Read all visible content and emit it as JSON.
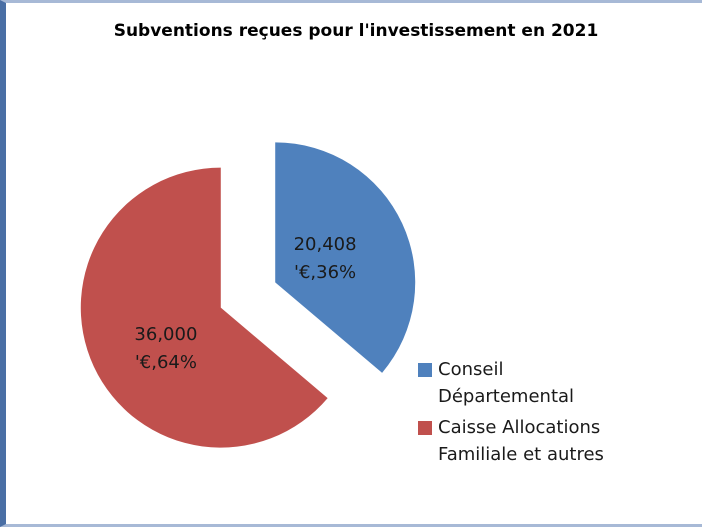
{
  "chart_data": {
    "type": "pie",
    "title": "Subventions reçues pour l'investissement en 2021",
    "categories": [
      "Conseil Départemental",
      "Caisse Allocations Familiale et autres"
    ],
    "values": [
      20408,
      36000
    ],
    "value_labels": [
      "20,408",
      "36,000"
    ],
    "percent_labels": [
      "'€,36%",
      "'€,64%"
    ],
    "colors": [
      "#4f81bd",
      "#c0504d"
    ],
    "legend": "right"
  }
}
